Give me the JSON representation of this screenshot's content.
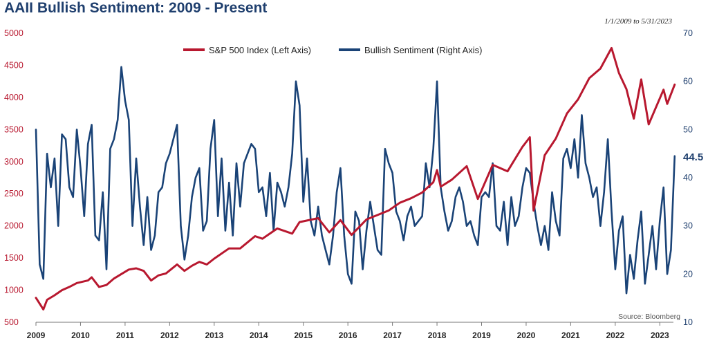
{
  "chart_data": {
    "type": "line",
    "title": "AAII Bullish Sentiment: 2009 - Present",
    "date_range": "1/1/2009 to 5/31/2023",
    "source": "Source: Bloomberg",
    "x_tick_labels": [
      "2009",
      "2010",
      "2011",
      "2012",
      "2013",
      "2014",
      "2015",
      "2016",
      "2017",
      "2018",
      "2019",
      "2020",
      "2021",
      "2022",
      "2023"
    ],
    "left_axis": {
      "ticks": [
        "500",
        "1000",
        "1500",
        "2000",
        "2500",
        "3000",
        "3500",
        "4000",
        "4500",
        "5000"
      ],
      "ylim": [
        500,
        5000
      ],
      "color": "#b8182f"
    },
    "right_axis": {
      "ticks": [
        "10",
        "20",
        "30",
        "40",
        "50",
        "60",
        "70"
      ],
      "ylim": [
        10,
        70
      ],
      "color": "#1f3f6e"
    },
    "legend": {
      "position": "top-center",
      "entries": [
        "S&P 500 Index (Left Axis)",
        "Bullish Sentiment (Right Axis)"
      ]
    },
    "last_value_label": "44.5",
    "grid": false,
    "series": [
      {
        "name": "S&P 500 Index (Left Axis)",
        "axis": "left",
        "color": "#b8182f",
        "points": [
          [
            "2009-01",
            880
          ],
          [
            "2009-03",
            700
          ],
          [
            "2009-04",
            850
          ],
          [
            "2009-06",
            920
          ],
          [
            "2009-08",
            1000
          ],
          [
            "2009-10",
            1050
          ],
          [
            "2009-12",
            1110
          ],
          [
            "2010-03",
            1150
          ],
          [
            "2010-04",
            1200
          ],
          [
            "2010-06",
            1050
          ],
          [
            "2010-08",
            1080
          ],
          [
            "2010-10",
            1180
          ],
          [
            "2010-12",
            1250
          ],
          [
            "2011-02",
            1320
          ],
          [
            "2011-04",
            1340
          ],
          [
            "2011-06",
            1300
          ],
          [
            "2011-08",
            1150
          ],
          [
            "2011-10",
            1230
          ],
          [
            "2011-12",
            1260
          ],
          [
            "2012-03",
            1400
          ],
          [
            "2012-05",
            1300
          ],
          [
            "2012-07",
            1380
          ],
          [
            "2012-09",
            1440
          ],
          [
            "2012-11",
            1400
          ],
          [
            "2013-01",
            1490
          ],
          [
            "2013-05",
            1650
          ],
          [
            "2013-08",
            1650
          ],
          [
            "2013-12",
            1840
          ],
          [
            "2014-02",
            1800
          ],
          [
            "2014-06",
            1960
          ],
          [
            "2014-10",
            1880
          ],
          [
            "2014-12",
            2060
          ],
          [
            "2015-05",
            2120
          ],
          [
            "2015-08",
            1900
          ],
          [
            "2015-11",
            2090
          ],
          [
            "2016-02",
            1860
          ],
          [
            "2016-06",
            2100
          ],
          [
            "2016-09",
            2170
          ],
          [
            "2016-12",
            2240
          ],
          [
            "2017-03",
            2360
          ],
          [
            "2017-06",
            2430
          ],
          [
            "2017-09",
            2520
          ],
          [
            "2017-12",
            2680
          ],
          [
            "2018-01",
            2870
          ],
          [
            "2018-02",
            2610
          ],
          [
            "2018-05",
            2720
          ],
          [
            "2018-09",
            2930
          ],
          [
            "2018-12",
            2420
          ],
          [
            "2019-04",
            2950
          ],
          [
            "2019-08",
            2850
          ],
          [
            "2019-12",
            3230
          ],
          [
            "2020-02",
            3380
          ],
          [
            "2020-03",
            2240
          ],
          [
            "2020-06",
            3100
          ],
          [
            "2020-09",
            3360
          ],
          [
            "2020-12",
            3750
          ],
          [
            "2021-03",
            3970
          ],
          [
            "2021-06",
            4300
          ],
          [
            "2021-09",
            4450
          ],
          [
            "2021-12",
            4770
          ],
          [
            "2022-02",
            4380
          ],
          [
            "2022-04",
            4130
          ],
          [
            "2022-06",
            3670
          ],
          [
            "2022-08",
            4280
          ],
          [
            "2022-10",
            3580
          ],
          [
            "2022-12",
            3850
          ],
          [
            "2023-02",
            4120
          ],
          [
            "2023-03",
            3900
          ],
          [
            "2023-05",
            4200
          ]
        ]
      },
      {
        "name": "Bullish Sentiment (Right Axis)",
        "axis": "right",
        "color": "#1a4377",
        "points": [
          [
            "2009-01",
            50
          ],
          [
            "2009-02",
            22
          ],
          [
            "2009-03",
            19
          ],
          [
            "2009-04",
            45
          ],
          [
            "2009-05",
            38
          ],
          [
            "2009-06",
            44
          ],
          [
            "2009-07",
            30
          ],
          [
            "2009-08",
            49
          ],
          [
            "2009-09",
            48
          ],
          [
            "2009-10",
            38
          ],
          [
            "2009-11",
            36
          ],
          [
            "2009-12",
            50
          ],
          [
            "2010-01",
            42
          ],
          [
            "2010-02",
            32
          ],
          [
            "2010-03",
            47
          ],
          [
            "2010-04",
            51
          ],
          [
            "2010-05",
            28
          ],
          [
            "2010-06",
            27
          ],
          [
            "2010-07",
            37
          ],
          [
            "2010-08",
            21
          ],
          [
            "2010-09",
            46
          ],
          [
            "2010-10",
            48
          ],
          [
            "2010-11",
            52
          ],
          [
            "2010-12",
            63
          ],
          [
            "2011-01",
            56
          ],
          [
            "2011-02",
            52
          ],
          [
            "2011-03",
            30
          ],
          [
            "2011-04",
            44
          ],
          [
            "2011-05",
            34
          ],
          [
            "2011-06",
            26
          ],
          [
            "2011-07",
            36
          ],
          [
            "2011-08",
            25
          ],
          [
            "2011-09",
            28
          ],
          [
            "2011-10",
            37
          ],
          [
            "2011-11",
            38
          ],
          [
            "2011-12",
            43
          ],
          [
            "2012-01",
            45
          ],
          [
            "2012-02",
            48
          ],
          [
            "2012-03",
            51
          ],
          [
            "2012-04",
            30
          ],
          [
            "2012-05",
            23
          ],
          [
            "2012-06",
            28
          ],
          [
            "2012-07",
            36
          ],
          [
            "2012-08",
            40
          ],
          [
            "2012-09",
            42
          ],
          [
            "2012-10",
            29
          ],
          [
            "2012-11",
            31
          ],
          [
            "2012-12",
            46
          ],
          [
            "2013-01",
            52
          ],
          [
            "2013-02",
            32
          ],
          [
            "2013-03",
            44
          ],
          [
            "2013-04",
            29
          ],
          [
            "2013-05",
            39
          ],
          [
            "2013-06",
            28
          ],
          [
            "2013-07",
            43
          ],
          [
            "2013-08",
            34
          ],
          [
            "2013-09",
            43
          ],
          [
            "2013-10",
            45
          ],
          [
            "2013-11",
            47
          ],
          [
            "2013-12",
            46
          ],
          [
            "2014-01",
            37
          ],
          [
            "2014-02",
            38
          ],
          [
            "2014-03",
            32
          ],
          [
            "2014-04",
            41
          ],
          [
            "2014-05",
            29
          ],
          [
            "2014-06",
            39
          ],
          [
            "2014-07",
            37
          ],
          [
            "2014-08",
            34
          ],
          [
            "2014-09",
            38
          ],
          [
            "2014-10",
            45
          ],
          [
            "2014-11",
            60
          ],
          [
            "2014-12",
            55
          ],
          [
            "2015-01",
            35
          ],
          [
            "2015-02",
            44
          ],
          [
            "2015-03",
            31
          ],
          [
            "2015-04",
            28
          ],
          [
            "2015-05",
            34
          ],
          [
            "2015-06",
            28
          ],
          [
            "2015-07",
            25
          ],
          [
            "2015-08",
            22
          ],
          [
            "2015-09",
            28
          ],
          [
            "2015-10",
            37
          ],
          [
            "2015-11",
            42
          ],
          [
            "2015-12",
            28
          ],
          [
            "2016-01",
            20
          ],
          [
            "2016-02",
            18
          ],
          [
            "2016-03",
            33
          ],
          [
            "2016-04",
            31
          ],
          [
            "2016-05",
            21
          ],
          [
            "2016-06",
            29
          ],
          [
            "2016-07",
            35
          ],
          [
            "2016-08",
            30
          ],
          [
            "2016-09",
            25
          ],
          [
            "2016-10",
            24
          ],
          [
            "2016-11",
            46
          ],
          [
            "2016-12",
            43
          ],
          [
            "2017-01",
            41
          ],
          [
            "2017-02",
            33
          ],
          [
            "2017-03",
            31
          ],
          [
            "2017-04",
            27
          ],
          [
            "2017-05",
            32
          ],
          [
            "2017-06",
            34
          ],
          [
            "2017-07",
            30
          ],
          [
            "2017-08",
            31
          ],
          [
            "2017-09",
            32
          ],
          [
            "2017-10",
            43
          ],
          [
            "2017-11",
            38
          ],
          [
            "2017-12",
            46
          ],
          [
            "2018-01",
            60
          ],
          [
            "2018-02",
            38
          ],
          [
            "2018-03",
            33
          ],
          [
            "2018-04",
            29
          ],
          [
            "2018-05",
            31
          ],
          [
            "2018-06",
            36
          ],
          [
            "2018-07",
            38
          ],
          [
            "2018-08",
            35
          ],
          [
            "2018-09",
            30
          ],
          [
            "2018-10",
            31
          ],
          [
            "2018-11",
            28
          ],
          [
            "2018-12",
            26
          ],
          [
            "2019-01",
            36
          ],
          [
            "2019-02",
            37
          ],
          [
            "2019-03",
            36
          ],
          [
            "2019-04",
            43
          ],
          [
            "2019-05",
            30
          ],
          [
            "2019-06",
            29
          ],
          [
            "2019-07",
            35
          ],
          [
            "2019-08",
            26
          ],
          [
            "2019-09",
            36
          ],
          [
            "2019-10",
            30
          ],
          [
            "2019-11",
            32
          ],
          [
            "2019-12",
            38
          ],
          [
            "2020-01",
            42
          ],
          [
            "2020-02",
            41
          ],
          [
            "2020-03",
            35
          ],
          [
            "2020-04",
            30
          ],
          [
            "2020-05",
            26
          ],
          [
            "2020-06",
            30
          ],
          [
            "2020-07",
            25
          ],
          [
            "2020-08",
            37
          ],
          [
            "2020-09",
            31
          ],
          [
            "2020-10",
            28
          ],
          [
            "2020-11",
            44
          ],
          [
            "2020-12",
            46
          ],
          [
            "2021-01",
            42
          ],
          [
            "2021-02",
            48
          ],
          [
            "2021-03",
            40
          ],
          [
            "2021-04",
            53
          ],
          [
            "2021-05",
            43
          ],
          [
            "2021-06",
            40
          ],
          [
            "2021-07",
            36
          ],
          [
            "2021-08",
            38
          ],
          [
            "2021-09",
            30
          ],
          [
            "2021-10",
            37
          ],
          [
            "2021-11",
            48
          ],
          [
            "2021-12",
            33
          ],
          [
            "2022-01",
            21
          ],
          [
            "2022-02",
            29
          ],
          [
            "2022-03",
            32
          ],
          [
            "2022-04",
            16
          ],
          [
            "2022-05",
            24
          ],
          [
            "2022-06",
            19
          ],
          [
            "2022-07",
            27
          ],
          [
            "2022-08",
            33
          ],
          [
            "2022-09",
            18
          ],
          [
            "2022-10",
            24
          ],
          [
            "2022-11",
            30
          ],
          [
            "2022-12",
            21
          ],
          [
            "2023-01",
            31
          ],
          [
            "2023-02",
            38
          ],
          [
            "2023-03",
            20
          ],
          [
            "2023-04",
            25
          ],
          [
            "2023-05",
            44.5
          ]
        ]
      }
    ]
  }
}
